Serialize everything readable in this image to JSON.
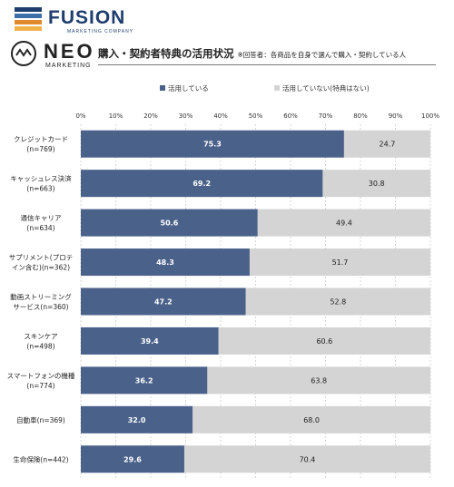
{
  "brand": {
    "fusion_name": "FUSION",
    "fusion_sub": "MARKETING COMPANY",
    "neo_name": "NEO",
    "neo_sub": "MARKETING"
  },
  "colors": {
    "used": "#4a618a",
    "not_used": "#d4d4d4",
    "gridline": "#bdbdbd"
  },
  "chart_data": {
    "type": "bar",
    "orientation": "horizontal",
    "stacked": true,
    "title": "購入・契約者特典の活用状況",
    "note": "※回答者：各商品を自身で選んで購入・契約している人",
    "xlim": [
      0,
      100
    ],
    "x_ticks": [
      "0%",
      "10%",
      "20%",
      "30%",
      "40%",
      "50%",
      "60%",
      "70%",
      "80%",
      "90%",
      "100%"
    ],
    "grid": true,
    "legend_position": "top",
    "categories": [
      [
        "クレジットカード",
        "(n=769)"
      ],
      [
        "キャッシュレス決済",
        "(n=663)"
      ],
      [
        "通信キャリア",
        "(n=634)"
      ],
      [
        "サプリメント(プロテ",
        "イン含む)(n=362)"
      ],
      [
        "動画ストリーミング",
        "サービス(n=360)"
      ],
      [
        "スキンケア",
        "(n=498)"
      ],
      [
        "スマートフォンの機種",
        "(n=774)"
      ],
      [
        "自動車(n=369)"
      ],
      [
        "生命保険(n=442)"
      ]
    ],
    "series": [
      {
        "name": "活用している",
        "values": [
          75.3,
          69.2,
          50.6,
          48.3,
          47.2,
          39.4,
          36.2,
          32.0,
          29.6
        ],
        "labels": [
          "75.3",
          "69.2",
          "50.6",
          "48.3",
          "47.2",
          "39.4",
          "36.2",
          "32.0",
          "29.6"
        ]
      },
      {
        "name": "活用していない(特典はない)",
        "values": [
          24.7,
          30.8,
          49.4,
          51.7,
          52.8,
          60.6,
          63.8,
          68.0,
          70.4
        ],
        "labels": [
          "24.7",
          "30.8",
          "49.4",
          "51.7",
          "52.8",
          "60.6",
          "63.8",
          "68.0",
          "70.4"
        ]
      }
    ]
  }
}
